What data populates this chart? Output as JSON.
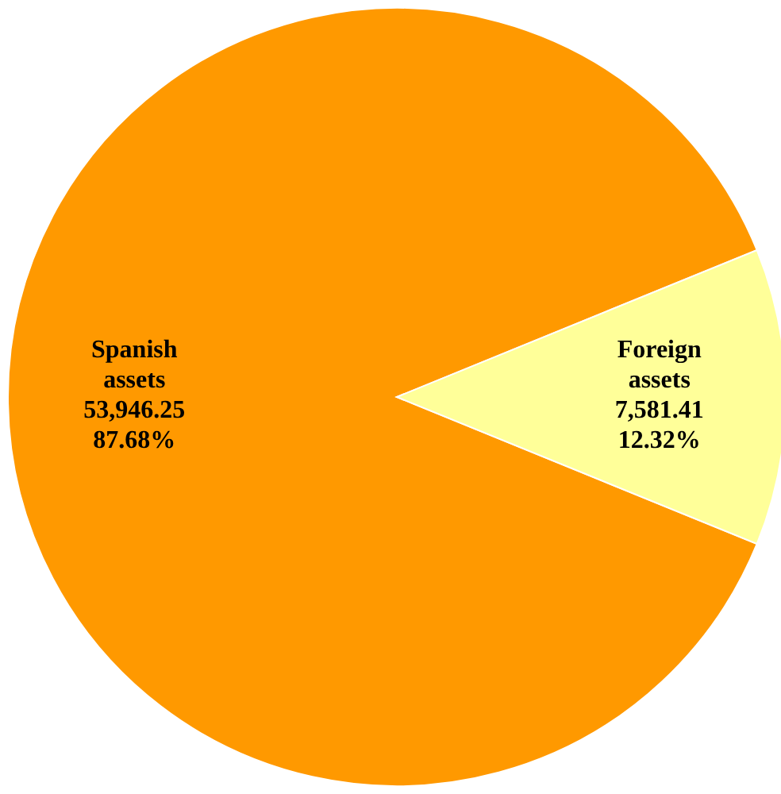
{
  "chart_data": {
    "type": "pie",
    "categories": [
      "Spanish assets",
      "Foreign assets"
    ],
    "values": [
      53946.25,
      7581.41
    ],
    "colors": [
      "#ff9900",
      "#ffff99"
    ],
    "value_labels": [
      "53,946.25\n87.68%",
      "7,581.41\n12.32%"
    ]
  }
}
